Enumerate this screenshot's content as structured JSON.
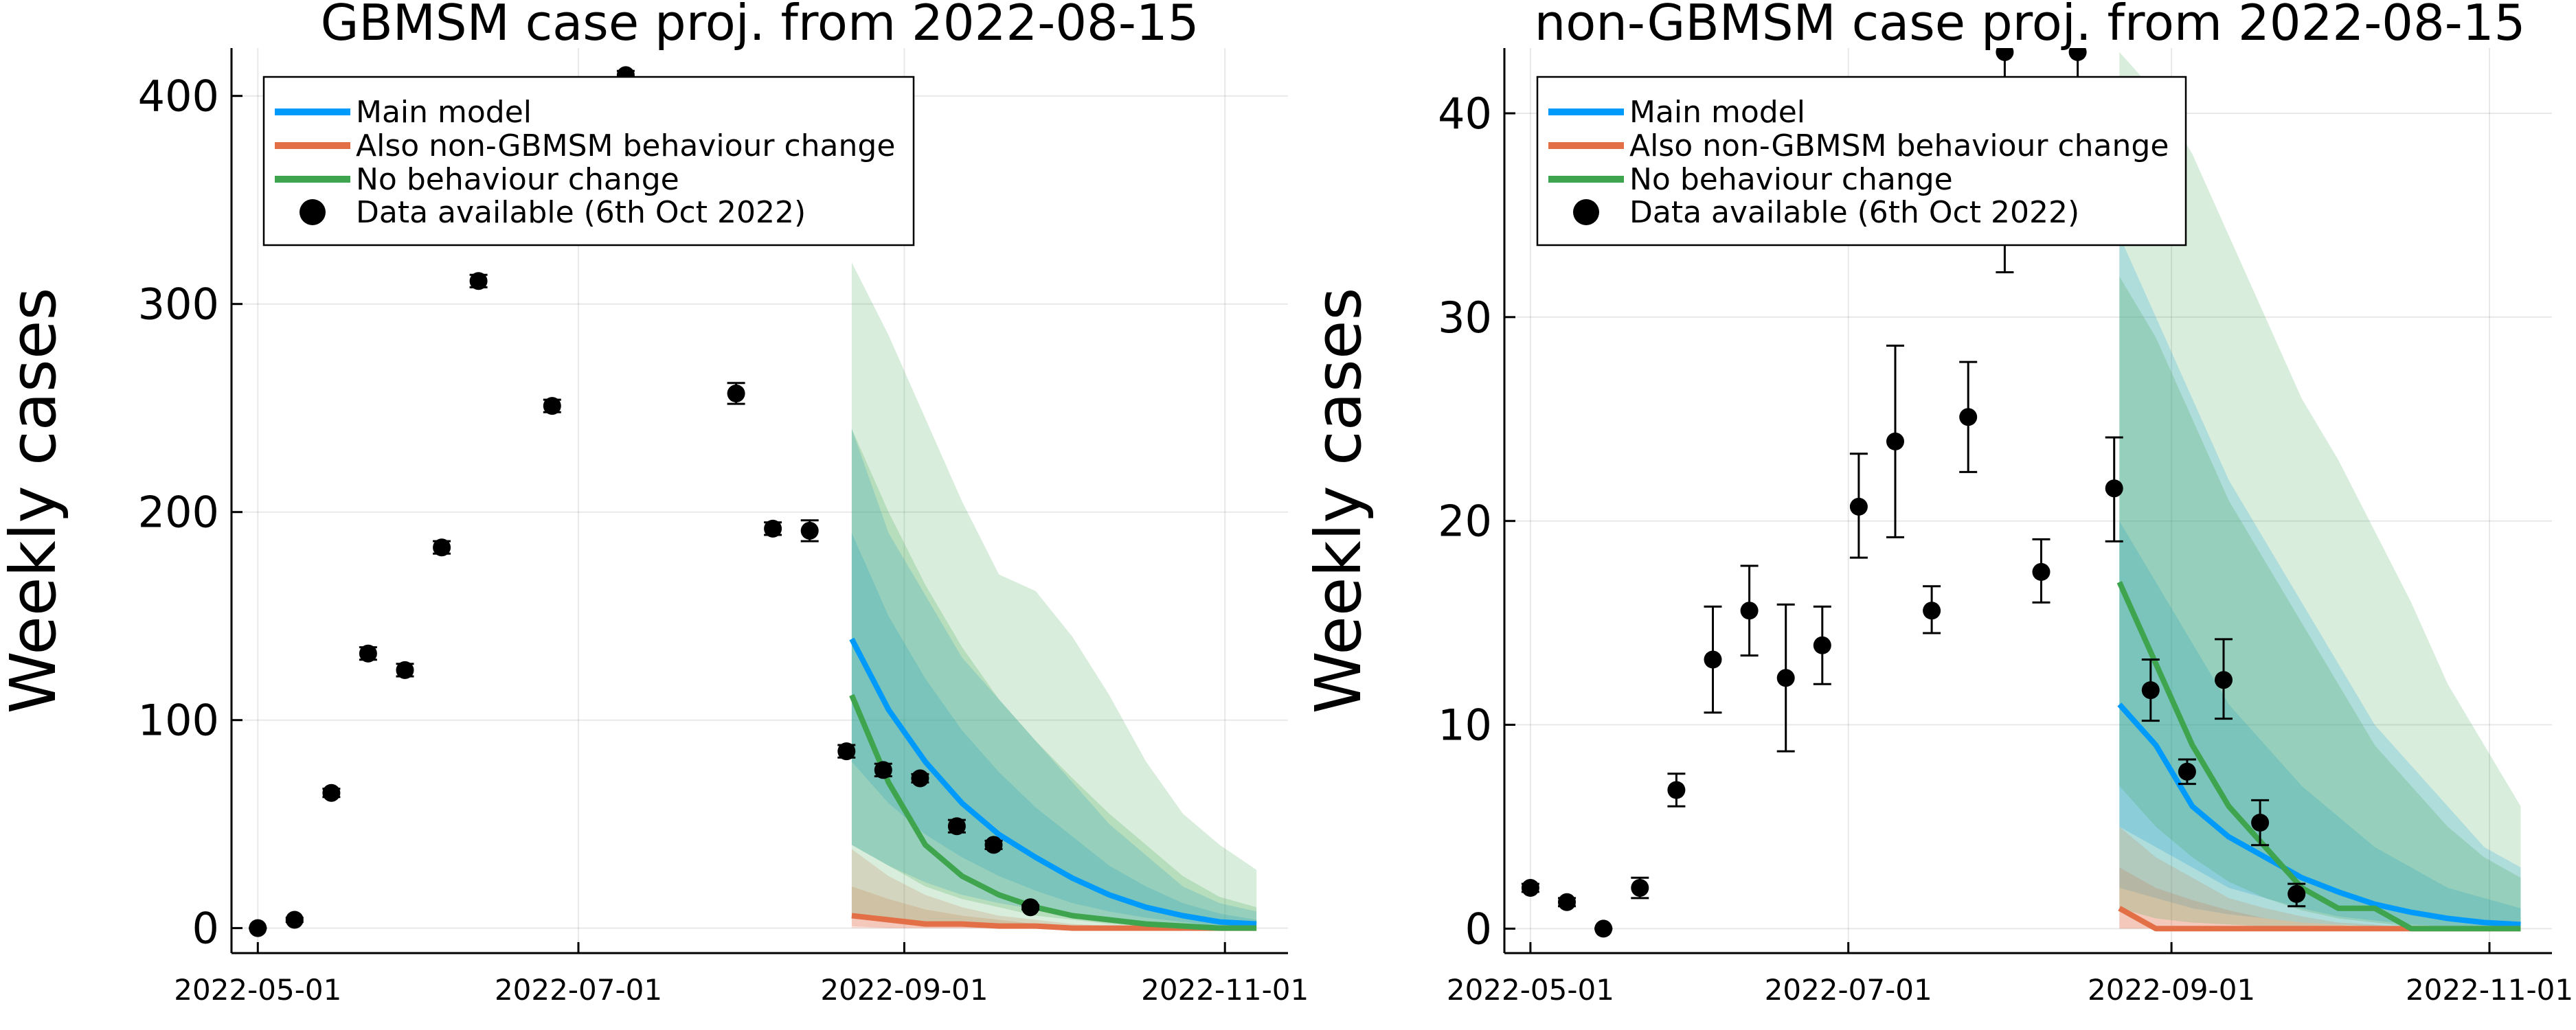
{
  "chart_data": [
    {
      "type": "line",
      "title": "GBMSM case proj. from 2022-08-15",
      "ylabel": "Weekly cases",
      "xlabel": "",
      "x_ticks": [
        "2022-05-01",
        "2022-07-01",
        "2022-09-01",
        "2022-11-01"
      ],
      "ylim": [
        -12,
        423
      ],
      "y_ticks": [
        0,
        100,
        200,
        300,
        400
      ],
      "grid": true,
      "legend": {
        "placement": "top-left",
        "entries": [
          {
            "label": "Main model",
            "color": "#009AFA",
            "kind": "line"
          },
          {
            "label": "Also non-GBMSM behaviour change",
            "color": "#E36F47",
            "kind": "line"
          },
          {
            "label": "No behaviour change",
            "color": "#3EA44E",
            "kind": "line"
          },
          {
            "label": "Data available (6th Oct 2022)",
            "color": "#000000",
            "kind": "marker"
          }
        ]
      },
      "series": [
        {
          "name": "Main model",
          "color": "#009AFA",
          "x": [
            "2022-08-22",
            "2022-08-29",
            "2022-09-05",
            "2022-09-12",
            "2022-09-19",
            "2022-09-26",
            "2022-10-03",
            "2022-10-10",
            "2022-10-17",
            "2022-10-24",
            "2022-10-31",
            "2022-11-07"
          ],
          "values": [
            139,
            105,
            80,
            60,
            45,
            34,
            24,
            16,
            10,
            6,
            3,
            2
          ],
          "bands": [
            {
              "lower": [
                40,
                30,
                22,
                16,
                12,
                9,
                6,
                4,
                2,
                1,
                0,
                0
              ],
              "upper": [
                240,
                190,
                160,
                130,
                110,
                90,
                70,
                50,
                35,
                20,
                12,
                8
              ]
            },
            {
              "lower": [
                80,
                60,
                45,
                34,
                25,
                18,
                12,
                8,
                5,
                3,
                1,
                1
              ],
              "upper": [
                190,
                150,
                120,
                95,
                75,
                58,
                44,
                30,
                20,
                12,
                7,
                4
              ]
            }
          ]
        },
        {
          "name": "Also non-GBMSM behaviour change",
          "color": "#E36F47",
          "x": [
            "2022-08-22",
            "2022-08-29",
            "2022-09-05",
            "2022-09-12",
            "2022-09-19",
            "2022-09-26",
            "2022-10-03",
            "2022-10-10",
            "2022-10-17",
            "2022-10-24",
            "2022-10-31",
            "2022-11-07"
          ],
          "values": [
            6,
            4,
            2,
            2,
            1,
            1,
            0,
            0,
            0,
            0,
            0,
            0
          ],
          "bands": [
            {
              "lower": [
                0,
                0,
                0,
                0,
                0,
                0,
                0,
                0,
                0,
                0,
                0,
                0
              ],
              "upper": [
                38,
                25,
                16,
                10,
                6,
                4,
                2,
                1,
                1,
                0,
                0,
                0
              ]
            },
            {
              "lower": [
                1,
                0,
                0,
                0,
                0,
                0,
                0,
                0,
                0,
                0,
                0,
                0
              ],
              "upper": [
                20,
                14,
                9,
                6,
                4,
                2,
                1,
                1,
                0,
                0,
                0,
                0
              ]
            }
          ]
        },
        {
          "name": "No behaviour change",
          "color": "#3EA44E",
          "x": [
            "2022-08-22",
            "2022-08-29",
            "2022-09-05",
            "2022-09-12",
            "2022-09-19",
            "2022-09-26",
            "2022-10-03",
            "2022-10-10",
            "2022-10-17",
            "2022-10-24",
            "2022-10-31",
            "2022-11-07"
          ],
          "values": [
            112,
            70,
            40,
            25,
            16,
            10,
            6,
            4,
            2,
            1,
            0,
            0
          ],
          "bands": [
            {
              "lower": [
                5,
                4,
                3,
                2,
                1,
                1,
                0,
                0,
                0,
                0,
                0,
                0
              ],
              "upper": [
                320,
                285,
                245,
                205,
                170,
                162,
                140,
                112,
                80,
                55,
                40,
                28
              ]
            },
            {
              "lower": [
                40,
                30,
                20,
                14,
                10,
                6,
                4,
                2,
                1,
                0,
                0,
                0
              ],
              "upper": [
                240,
                200,
                165,
                135,
                110,
                90,
                72,
                55,
                40,
                25,
                15,
                10
              ]
            }
          ]
        }
      ],
      "observations": {
        "name": "Data available (6th Oct 2022)",
        "points": [
          {
            "x": "2022-05-01",
            "y": 0,
            "lo": 0,
            "hi": 0
          },
          {
            "x": "2022-05-08",
            "y": 4,
            "lo": 3,
            "hi": 5
          },
          {
            "x": "2022-05-15",
            "y": 65,
            "lo": 63,
            "hi": 67
          },
          {
            "x": "2022-05-22",
            "y": 132,
            "lo": 129,
            "hi": 135
          },
          {
            "x": "2022-05-29",
            "y": 124,
            "lo": 121,
            "hi": 127
          },
          {
            "x": "2022-06-05",
            "y": 183,
            "lo": 180,
            "hi": 186
          },
          {
            "x": "2022-06-12",
            "y": 311,
            "lo": 308,
            "hi": 314
          },
          {
            "x": "2022-06-26",
            "y": 251,
            "lo": 248,
            "hi": 254
          },
          {
            "x": "2022-07-10",
            "y": 410,
            "lo": 408,
            "hi": 412
          },
          {
            "x": "2022-07-31",
            "y": 257,
            "lo": 252,
            "hi": 262
          },
          {
            "x": "2022-08-07",
            "y": 192,
            "lo": 189,
            "hi": 195
          },
          {
            "x": "2022-08-14",
            "y": 191,
            "lo": 186,
            "hi": 196
          },
          {
            "x": "2022-08-21",
            "y": 85,
            "lo": 82,
            "hi": 88
          },
          {
            "x": "2022-08-28",
            "y": 76,
            "lo": 73,
            "hi": 79
          },
          {
            "x": "2022-09-04",
            "y": 72,
            "lo": 70,
            "hi": 74
          },
          {
            "x": "2022-09-11",
            "y": 49,
            "lo": 46,
            "hi": 52
          },
          {
            "x": "2022-09-18",
            "y": 40,
            "lo": 38,
            "hi": 42
          },
          {
            "x": "2022-09-25",
            "y": 10,
            "lo": 9,
            "hi": 11
          }
        ]
      }
    },
    {
      "type": "line",
      "title": "non-GBMSM case proj. from 2022-08-15",
      "ylabel": "Weekly cases",
      "xlabel": "",
      "x_ticks": [
        "2022-05-01",
        "2022-07-01",
        "2022-09-01",
        "2022-11-01"
      ],
      "ylim": [
        -1.2,
        43.2
      ],
      "y_ticks": [
        0,
        10,
        20,
        30,
        40
      ],
      "grid": true,
      "legend": {
        "placement": "top-left",
        "entries": [
          {
            "label": "Main model",
            "color": "#009AFA",
            "kind": "line"
          },
          {
            "label": "Also non-GBMSM behaviour change",
            "color": "#E36F47",
            "kind": "line"
          },
          {
            "label": "No behaviour change",
            "color": "#3EA44E",
            "kind": "line"
          },
          {
            "label": "Data available (6th Oct 2022)",
            "color": "#000000",
            "kind": "marker"
          }
        ]
      },
      "series": [
        {
          "name": "Main model",
          "color": "#009AFA",
          "x": [
            "2022-08-22",
            "2022-08-29",
            "2022-09-05",
            "2022-09-12",
            "2022-09-19",
            "2022-09-26",
            "2022-10-03",
            "2022-10-10",
            "2022-10-17",
            "2022-10-24",
            "2022-10-31",
            "2022-11-07"
          ],
          "values": [
            11,
            9,
            6,
            4.5,
            3.5,
            2.5,
            1.8,
            1.2,
            0.8,
            0.5,
            0.3,
            0.2
          ],
          "bands": [
            {
              "lower": [
                2,
                1.5,
                1.0,
                0.7,
                0.5,
                0.3,
                0.2,
                0.1,
                0,
                0,
                0,
                0
              ],
              "upper": [
                34,
                30,
                26,
                22,
                19,
                16,
                13,
                10,
                8,
                6,
                4,
                3
              ]
            },
            {
              "lower": [
                5,
                4,
                3,
                2,
                1.5,
                1.0,
                0.6,
                0.4,
                0.2,
                0.1,
                0,
                0
              ],
              "upper": [
                20,
                17,
                14,
                11,
                9,
                7,
                5.5,
                4,
                3,
                2,
                1.5,
                1
              ]
            }
          ]
        },
        {
          "name": "Also non-GBMSM behaviour change",
          "color": "#E36F47",
          "x": [
            "2022-08-22",
            "2022-08-29",
            "2022-09-05",
            "2022-09-12",
            "2022-09-19",
            "2022-09-26",
            "2022-10-03",
            "2022-10-10",
            "2022-10-17",
            "2022-10-24",
            "2022-10-31",
            "2022-11-07"
          ],
          "values": [
            1,
            0,
            0,
            0,
            0,
            0,
            0,
            0,
            0,
            0,
            0,
            0
          ],
          "bands": [
            {
              "lower": [
                0,
                0,
                0,
                0,
                0,
                0,
                0,
                0,
                0,
                0,
                0,
                0
              ],
              "upper": [
                5,
                3.5,
                2.5,
                1.5,
                1.0,
                0.6,
                0.3,
                0.2,
                0,
                0,
                0,
                0
              ]
            },
            {
              "lower": [
                0,
                0,
                0,
                0,
                0,
                0,
                0,
                0,
                0,
                0,
                0,
                0
              ],
              "upper": [
                3,
                2,
                1.4,
                0.9,
                0.5,
                0.3,
                0.2,
                0,
                0,
                0,
                0,
                0
              ]
            }
          ]
        },
        {
          "name": "No behaviour change",
          "color": "#3EA44E",
          "x": [
            "2022-08-22",
            "2022-08-29",
            "2022-09-05",
            "2022-09-12",
            "2022-09-19",
            "2022-09-26",
            "2022-10-03",
            "2022-10-10",
            "2022-10-17",
            "2022-10-24",
            "2022-10-31",
            "2022-11-07"
          ],
          "values": [
            17,
            13,
            9,
            6,
            4,
            2,
            1,
            1,
            0,
            0,
            0,
            0
          ],
          "bands": [
            {
              "lower": [
                1,
                0.5,
                0.3,
                0.2,
                0.1,
                0,
                0,
                0,
                0,
                0,
                0,
                0
              ],
              "upper": [
                43,
                41,
                38,
                34,
                30,
                26,
                23,
                19.5,
                16,
                12,
                9,
                6
              ]
            },
            {
              "lower": [
                7,
                5,
                3.5,
                2.3,
                1.5,
                0.9,
                0.5,
                0.3,
                0.1,
                0,
                0,
                0
              ],
              "upper": [
                32,
                29,
                25,
                21,
                18,
                15,
                12,
                9,
                7,
                5,
                3.5,
                2.5
              ]
            }
          ]
        }
      ],
      "observations": {
        "name": "Data available (6th Oct 2022)",
        "points": [
          {
            "x": "2022-05-01",
            "y": 2,
            "lo": 1.8,
            "hi": 2.2
          },
          {
            "x": "2022-05-08",
            "y": 1.3,
            "lo": 1.1,
            "hi": 1.5
          },
          {
            "x": "2022-05-15",
            "y": 0,
            "lo": 0,
            "hi": 0
          },
          {
            "x": "2022-05-22",
            "y": 2,
            "lo": 1.5,
            "hi": 2.5
          },
          {
            "x": "2022-05-29",
            "y": 6.8,
            "lo": 6.0,
            "hi": 7.6
          },
          {
            "x": "2022-06-05",
            "y": 13.2,
            "lo": 10.6,
            "hi": 15.8
          },
          {
            "x": "2022-06-12",
            "y": 15.6,
            "lo": 13.4,
            "hi": 17.8
          },
          {
            "x": "2022-06-19",
            "y": 12.3,
            "lo": 8.7,
            "hi": 15.9
          },
          {
            "x": "2022-06-26",
            "y": 13.9,
            "lo": 12.0,
            "hi": 15.8
          },
          {
            "x": "2022-07-03",
            "y": 20.7,
            "lo": 18.2,
            "hi": 23.3
          },
          {
            "x": "2022-07-10",
            "y": 23.9,
            "lo": 19.2,
            "hi": 28.6
          },
          {
            "x": "2022-07-17",
            "y": 15.6,
            "lo": 14.5,
            "hi": 16.8
          },
          {
            "x": "2022-07-24",
            "y": 25.1,
            "lo": 22.4,
            "hi": 27.8
          },
          {
            "x": "2022-07-31",
            "y": 43,
            "lo": 32.2,
            "hi": 45
          },
          {
            "x": "2022-08-07",
            "y": 17.5,
            "lo": 16.0,
            "hi": 19.1
          },
          {
            "x": "2022-08-14",
            "y": 43,
            "lo": 33.6,
            "hi": 45
          },
          {
            "x": "2022-08-21",
            "y": 21.6,
            "lo": 19.0,
            "hi": 24.1
          },
          {
            "x": "2022-08-28",
            "y": 11.7,
            "lo": 10.2,
            "hi": 13.2
          },
          {
            "x": "2022-09-04",
            "y": 7.7,
            "lo": 7.1,
            "hi": 8.3
          },
          {
            "x": "2022-09-11",
            "y": 12.2,
            "lo": 10.3,
            "hi": 14.2
          },
          {
            "x": "2022-09-18",
            "y": 5.2,
            "lo": 4.1,
            "hi": 6.3
          },
          {
            "x": "2022-09-25",
            "y": 1.7,
            "lo": 1.1,
            "hi": 2.2
          }
        ]
      }
    }
  ]
}
